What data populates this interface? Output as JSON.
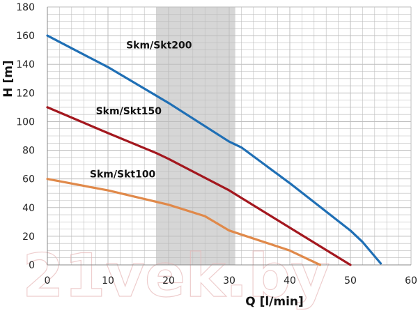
{
  "chart_data": {
    "type": "line",
    "title": "",
    "xlabel": "Q [l/min]",
    "ylabel": "H [m]",
    "xlim": [
      0,
      60
    ],
    "ylim": [
      0,
      180
    ],
    "x_ticks": [
      "0",
      "10",
      "20",
      "30",
      "40",
      "50",
      "60"
    ],
    "y_ticks": [
      "0",
      "20",
      "40",
      "60",
      "80",
      "100",
      "120",
      "140",
      "160",
      "180"
    ],
    "grid": true,
    "highlight_band": {
      "x_from": 18,
      "x_to": 31
    },
    "watermark": "21vek.by",
    "colors": {
      "Skm/Skt200": "#1f6fb5",
      "Skm/Skt150": "#a3171e",
      "Skm/Skt100": "#e0894a",
      "band": "#d6d6d6",
      "grid": "#bdbdbd"
    },
    "series": [
      {
        "name": "Skm/Skt200",
        "label_at": [
          13,
          151
        ],
        "x": [
          0,
          10,
          20,
          30,
          32,
          40,
          50,
          52,
          55
        ],
        "y": [
          160,
          138,
          113,
          86,
          82,
          57,
          24,
          16,
          1
        ]
      },
      {
        "name": "Skm/Skt150",
        "label_at": [
          8,
          105
        ],
        "x": [
          0,
          10,
          18,
          20,
          30,
          40,
          50
        ],
        "y": [
          110,
          92,
          78,
          74,
          52,
          26,
          0
        ]
      },
      {
        "name": "Skm/Skt100",
        "label_at": [
          7,
          61
        ],
        "x": [
          0,
          10,
          20,
          26,
          30,
          40,
          45
        ],
        "y": [
          60,
          52,
          42,
          34,
          24,
          10,
          0
        ]
      }
    ]
  }
}
